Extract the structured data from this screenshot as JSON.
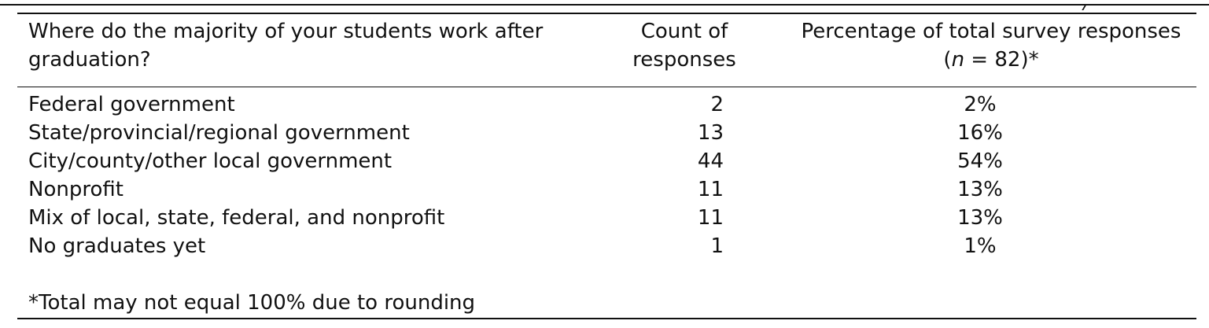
{
  "table": {
    "headers": {
      "col1": "Where do the majority of your students work after graduation?",
      "col2_line1": "Count of",
      "col2_line2": "responses",
      "col3_line1": "Percentage of total survey responses",
      "col3_line2_n": "n",
      "col3_line2_rest": " = 82)*",
      "col3_line2_open": "("
    },
    "rows": [
      {
        "category": "Federal government",
        "count": "2",
        "percent": "2%"
      },
      {
        "category": "State/provincial/regional government",
        "count": "13",
        "percent": "16%"
      },
      {
        "category": "City/county/other local government",
        "count": "44",
        "percent": "54%"
      },
      {
        "category": "Nonprofit",
        "count": "11",
        "percent": "13%"
      },
      {
        "category": "Mix of local, state, federal, and nonprofit",
        "count": "11",
        "percent": "13%"
      },
      {
        "category": "No graduates yet",
        "count": "1",
        "percent": "1%"
      }
    ],
    "footnote": "*Total may not equal 100% due to rounding"
  }
}
